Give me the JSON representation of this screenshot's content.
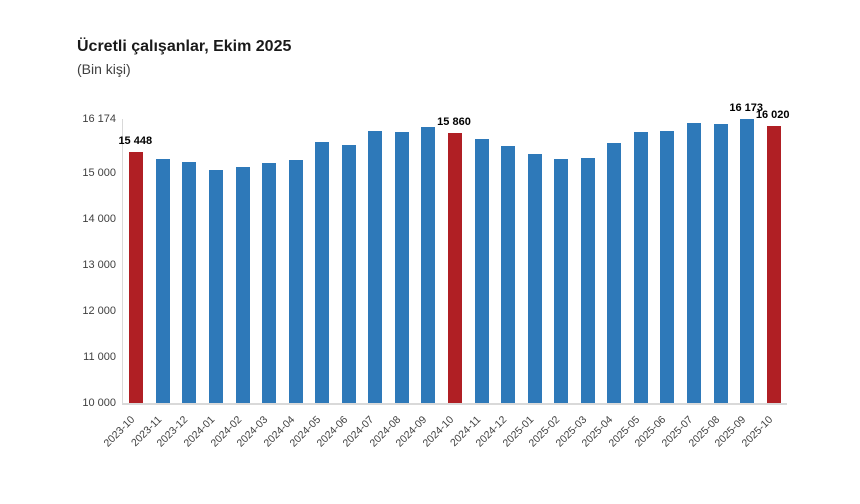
{
  "header": {
    "title": "Ücretli çalışanlar, Ekim 2025",
    "subtitle": "(Bin kişi)"
  },
  "chart_data": {
    "type": "bar",
    "title": "Ücretli çalışanlar, Ekim 2025",
    "subtitle": "(Bin kişi)",
    "unit": "Bin kişi",
    "categories": [
      "2023-10",
      "2023-11",
      "2023-12",
      "2024-01",
      "2024-02",
      "2024-03",
      "2024-04",
      "2024-05",
      "2024-06",
      "2024-07",
      "2024-08",
      "2024-09",
      "2024-10",
      "2024-11",
      "2024-12",
      "2025-01",
      "2025-02",
      "2025-03",
      "2025-04",
      "2025-05",
      "2025-06",
      "2025-07",
      "2025-08",
      "2025-09",
      "2025-10"
    ],
    "values": [
      15448,
      15305,
      15245,
      15065,
      15125,
      15210,
      15280,
      15680,
      15600,
      15920,
      15900,
      15990,
      15860,
      15735,
      15580,
      15410,
      15300,
      15330,
      15660,
      15890,
      15915,
      16090,
      16075,
      16173,
      16020
    ],
    "highlighted_categories": [
      "2023-10",
      "2024-10",
      "2025-10"
    ],
    "labeled_points": [
      {
        "category": "2023-10",
        "label": "15 448"
      },
      {
        "category": "2024-10",
        "label": "15 860"
      },
      {
        "category": "2025-09",
        "label": "16 173"
      },
      {
        "category": "2025-10",
        "label": "16 020"
      }
    ],
    "y_ticks": [
      "16 174",
      "15 000",
      "14 000",
      "13 000",
      "12 000",
      "11 000",
      "10 000"
    ],
    "y_tick_values": [
      16174,
      15000,
      14000,
      13000,
      12000,
      11000,
      10000
    ],
    "ylim": [
      10000,
      16174
    ],
    "xlabel": "",
    "ylabel": "",
    "grid": false,
    "legend": false,
    "colors": {
      "bar": "#2E79B9",
      "highlight": "#B01F24",
      "axis": "#D9D9D9",
      "text": "#404040"
    }
  }
}
